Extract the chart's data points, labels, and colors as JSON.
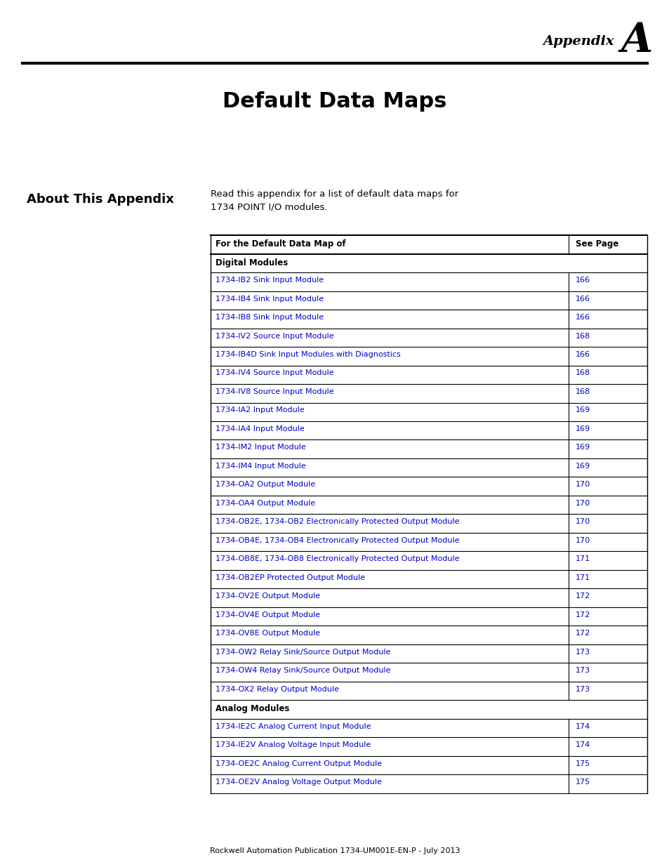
{
  "appendix_label": "Appendix",
  "appendix_letter": "A",
  "title": "Default Data Maps",
  "section_title": "About This Appendix",
  "intro_text": "Read this appendix for a list of default data maps for\n1734 POINT I/O modules.",
  "table_header": [
    "For the Default Data Map of",
    "See Page"
  ],
  "section_digital": "Digital Modules",
  "section_analog": "Analog Modules",
  "digital_rows": [
    [
      "1734-IB2 Sink Input Module",
      "166"
    ],
    [
      "1734-IB4 Sink Input Module",
      "166"
    ],
    [
      "1734-IB8 Sink Input Module",
      "166"
    ],
    [
      "1734-IV2 Source Input Module",
      "168"
    ],
    [
      "1734-IB4D Sink Input Modules with Diagnostics",
      "166"
    ],
    [
      "1734-IV4 Source Input Module",
      "168"
    ],
    [
      "1734-IV8 Source Input Module",
      "168"
    ],
    [
      "1734-IA2 Input Module",
      "169"
    ],
    [
      "1734-IA4 Input Module",
      "169"
    ],
    [
      "1734-IM2 Input Module",
      "169"
    ],
    [
      "1734-IM4 Input Module",
      "169"
    ],
    [
      "1734-OA2 Output Module",
      "170"
    ],
    [
      "1734-OA4 Output Module",
      "170"
    ],
    [
      "1734-OB2E, 1734-OB2 Electronically Protected Output Module",
      "170"
    ],
    [
      "1734-OB4E, 1734-OB4 Electronically Protected Output Module",
      "170"
    ],
    [
      "1734-OB8E, 1734-OB8 Electronically Protected Output Module",
      "171"
    ],
    [
      "1734-OB2EP Protected Output Module",
      "171"
    ],
    [
      "1734-OV2E Output Module",
      "172"
    ],
    [
      "1734-OV4E Output Module",
      "172"
    ],
    [
      "1734-OV8E Output Module",
      "172"
    ],
    [
      "1734-OW2 Relay Sink/Source Output Module",
      "173"
    ],
    [
      "1734-OW4 Relay Sink/Source Output Module",
      "173"
    ],
    [
      "1734-OX2 Relay Output Module",
      "173"
    ]
  ],
  "analog_rows": [
    [
      "1734-IE2C Analog Current Input Module",
      "174"
    ],
    [
      "1734-IE2V Analog Voltage Input Module",
      "174"
    ],
    [
      "1734-OE2C Analog Current Output Module",
      "175"
    ],
    [
      "1734-OE2V Analog Voltage Output Module",
      "175"
    ]
  ],
  "footer": "Rockwell Automation Publication 1734-UM001E-EN-P - July 2013",
  "link_color": "#0000CC",
  "bg_color": "#FFFFFF",
  "text_color": "#000000",
  "header_line_color": "#000000",
  "table_line_color": "#000000"
}
